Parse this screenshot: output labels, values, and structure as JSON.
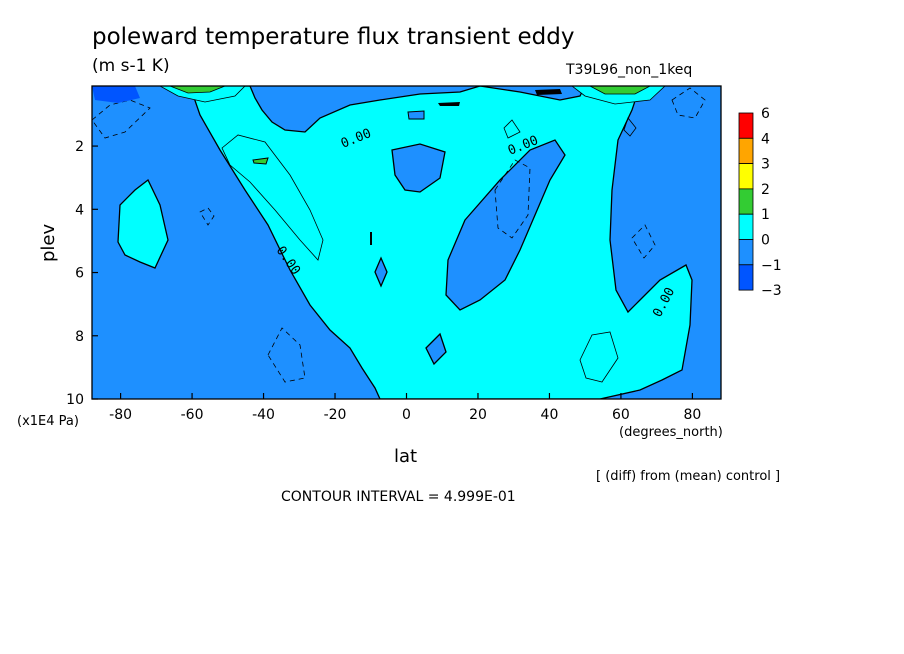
{
  "title": "poleward temperature flux transient eddy",
  "units": "(m s-1 K)",
  "run_label": "T39L96_non_1keq",
  "note": "[ (diff) from (mean) control ]",
  "contour_interval": "CONTOUR INTERVAL = 4.999E-01",
  "chart_data": {
    "type": "heatmap",
    "xlabel": "lat",
    "xunits": "(degrees_north)",
    "ylabel": "plev",
    "yunits": "(x1E4 Pa)",
    "xlim": [
      -88,
      88
    ],
    "ylim": [
      10,
      0.1
    ],
    "xticks": [
      -80,
      -60,
      -40,
      -20,
      0,
      20,
      40,
      60,
      80
    ],
    "yticks": [
      2,
      4,
      6,
      8,
      10
    ],
    "contour_labels": [
      "0.00",
      "0.00",
      "0.00",
      "0.00"
    ],
    "colorbar": {
      "levels": [
        "6",
        "4",
        "3",
        "2",
        "1",
        "0",
        "−1",
        "−3"
      ],
      "colors": [
        "#ff0000",
        "#ffa500",
        "#ffff00",
        "#33cc33",
        "#00ffff",
        "#1e90ff",
        "#0055ff"
      ]
    }
  }
}
